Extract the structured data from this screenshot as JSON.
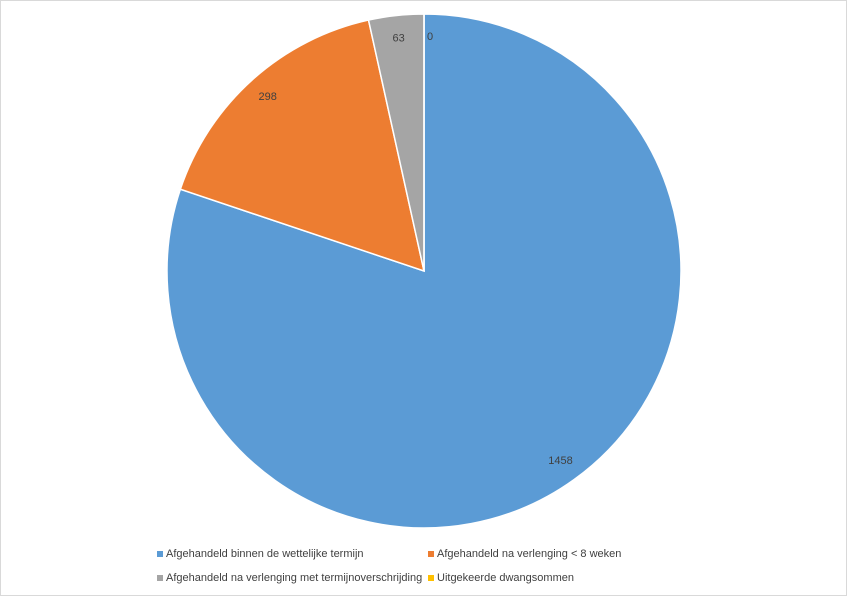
{
  "chart_data": {
    "type": "pie",
    "categories": [
      "Afgehandeld binnen de wettelijke termijn",
      "Afgehandeld na verlenging < 8 weken",
      "Afgehandeld na verlenging met termijnoverschrijding",
      "Uitgekeerde dwangsommen"
    ],
    "values": [
      1458,
      298,
      63,
      0
    ],
    "colors": [
      "#5b9bd5",
      "#ed7d31",
      "#a5a5a5",
      "#ffc000"
    ]
  }
}
